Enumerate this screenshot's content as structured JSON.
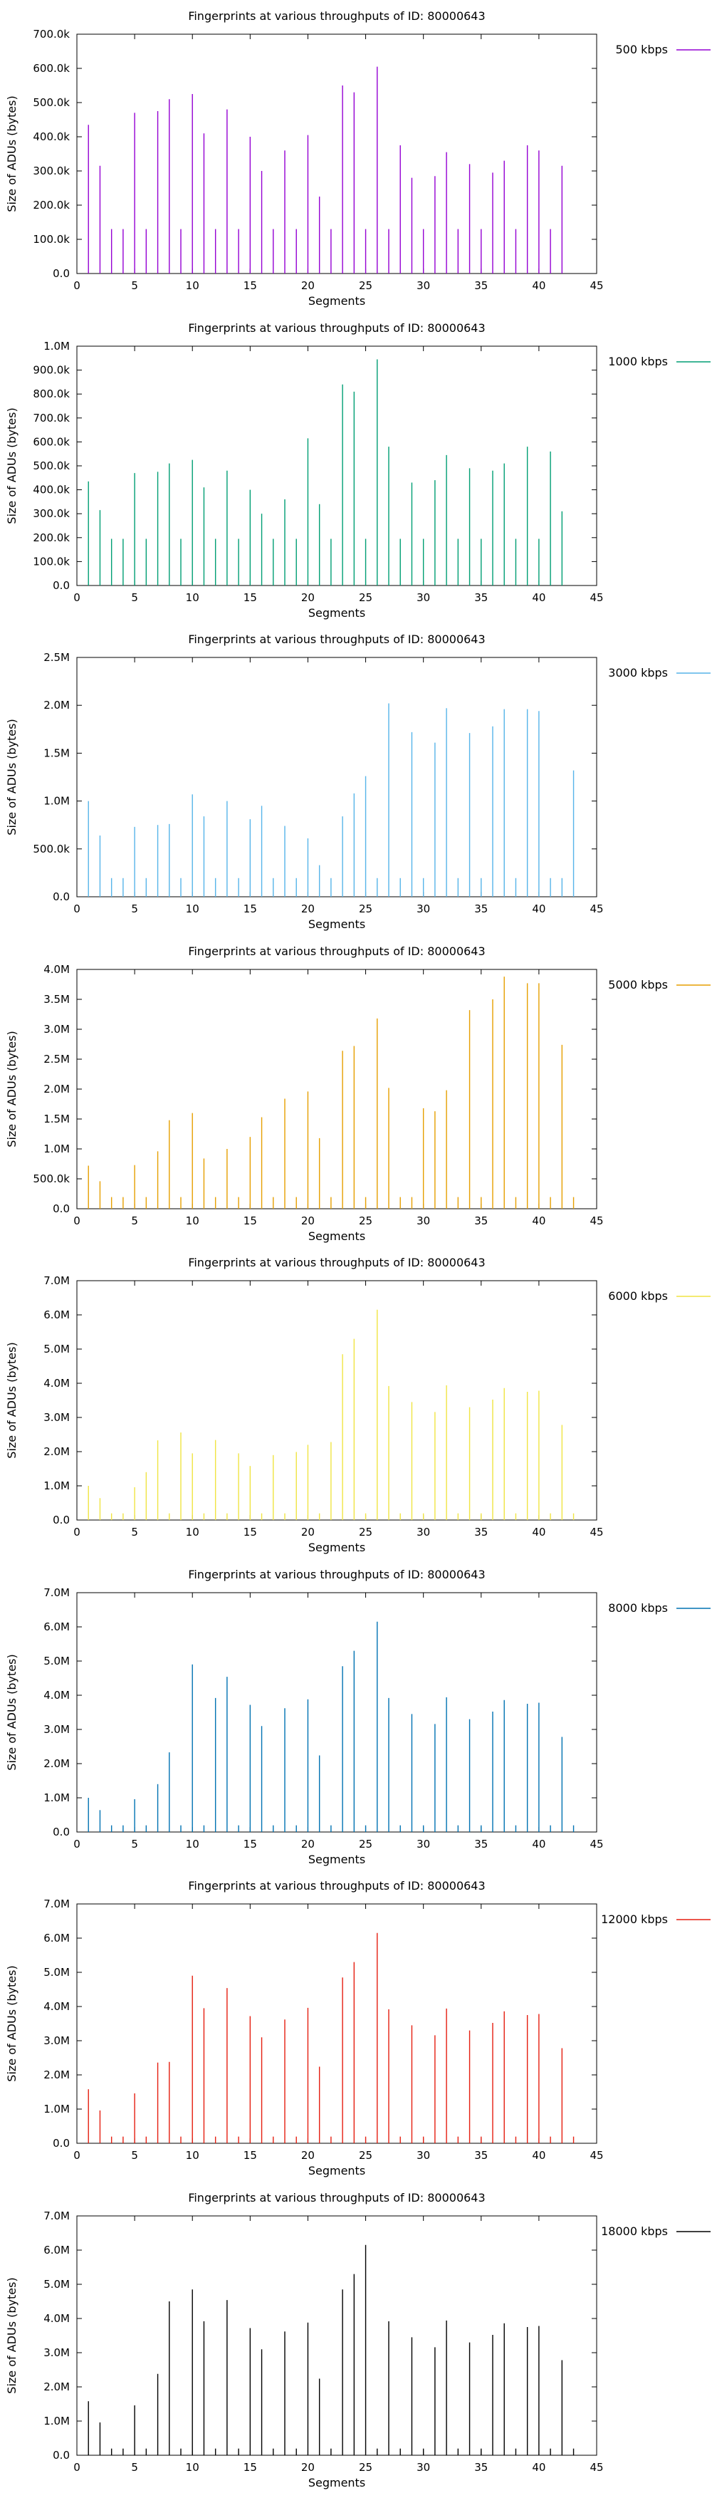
{
  "chart_data": [
    {
      "type": "bar",
      "title": "Fingerprints at various throughputs of ID: 80000643",
      "xlabel": "Segments",
      "ylabel": "Size of ADUs (bytes)",
      "xlim": [
        0,
        45
      ],
      "ylim": [
        0,
        700000
      ],
      "xticks": [
        "0",
        "5",
        "10",
        "15",
        "20",
        "25",
        "30",
        "35",
        "40",
        "45"
      ],
      "yticks": [
        "0.0",
        "100.0k",
        "200.0k",
        "300.0k",
        "400.0k",
        "500.0k",
        "600.0k",
        "700.0k"
      ],
      "legend": "top-right",
      "series": [
        {
          "name": "500 kbps",
          "color": "#9400d3",
          "x": [
            1,
            2,
            3,
            4,
            5,
            6,
            7,
            8,
            9,
            10,
            11,
            12,
            13,
            14,
            15,
            16,
            17,
            18,
            19,
            20,
            21,
            22,
            23,
            24,
            25,
            26,
            27,
            28,
            29,
            30,
            31,
            32,
            33,
            34,
            35,
            36,
            37,
            38,
            39,
            40,
            41,
            42
          ],
          "values": [
            435000,
            315000,
            130000,
            130000,
            470000,
            130000,
            475000,
            510000,
            130000,
            525000,
            410000,
            130000,
            480000,
            130000,
            400000,
            300000,
            130000,
            360000,
            130000,
            405000,
            225000,
            130000,
            550000,
            530000,
            130000,
            605000,
            130000,
            375000,
            280000,
            130000,
            285000,
            355000,
            130000,
            320000,
            130000,
            295000,
            330000,
            130000,
            375000,
            360000,
            130000,
            315000
          ]
        }
      ]
    },
    {
      "type": "bar",
      "title": "Fingerprints at various throughputs of ID: 80000643",
      "xlabel": "Segments",
      "ylabel": "Size of ADUs (bytes)",
      "xlim": [
        0,
        45
      ],
      "ylim": [
        0,
        1000000
      ],
      "xticks": [
        "0",
        "5",
        "10",
        "15",
        "20",
        "25",
        "30",
        "35",
        "40",
        "45"
      ],
      "yticks": [
        "0.0",
        "100.0k",
        "200.0k",
        "300.0k",
        "400.0k",
        "500.0k",
        "600.0k",
        "700.0k",
        "800.0k",
        "900.0k",
        "1.0M"
      ],
      "legend": "top-right",
      "series": [
        {
          "name": "1000 kbps",
          "color": "#009e73",
          "x": [
            1,
            2,
            3,
            4,
            5,
            6,
            7,
            8,
            9,
            10,
            11,
            12,
            13,
            14,
            15,
            16,
            17,
            18,
            19,
            20,
            21,
            22,
            23,
            24,
            25,
            26,
            27,
            28,
            29,
            30,
            31,
            32,
            33,
            34,
            35,
            36,
            37,
            38,
            39,
            40,
            41,
            42
          ],
          "values": [
            435000,
            315000,
            195000,
            195000,
            470000,
            195000,
            475000,
            510000,
            195000,
            525000,
            410000,
            195000,
            480000,
            195000,
            400000,
            300000,
            195000,
            360000,
            195000,
            615000,
            340000,
            195000,
            840000,
            810000,
            195000,
            945000,
            580000,
            195000,
            430000,
            195000,
            440000,
            545000,
            195000,
            490000,
            195000,
            480000,
            510000,
            195000,
            580000,
            195000,
            560000,
            310000
          ]
        }
      ]
    },
    {
      "type": "bar",
      "title": "Fingerprints at various throughputs of ID: 80000643",
      "xlabel": "Segments",
      "ylabel": "Size of ADUs (bytes)",
      "xlim": [
        0,
        45
      ],
      "ylim": [
        0,
        2500000
      ],
      "xticks": [
        "0",
        "5",
        "10",
        "15",
        "20",
        "25",
        "30",
        "35",
        "40",
        "45"
      ],
      "yticks": [
        "0.0",
        "500.0k",
        "1.0M",
        "1.5M",
        "2.0M",
        "2.5M"
      ],
      "legend": "top-right",
      "series": [
        {
          "name": "3000 kbps",
          "color": "#56b4e9",
          "x": [
            1,
            2,
            3,
            4,
            5,
            6,
            7,
            8,
            9,
            10,
            11,
            12,
            13,
            14,
            15,
            16,
            17,
            18,
            19,
            20,
            21,
            22,
            23,
            24,
            25,
            26,
            27,
            28,
            29,
            30,
            31,
            32,
            33,
            34,
            35,
            36,
            37,
            38,
            39,
            40,
            41,
            42,
            43
          ],
          "values": [
            1000000,
            640000,
            195000,
            195000,
            730000,
            195000,
            750000,
            760000,
            195000,
            1070000,
            840000,
            195000,
            1000000,
            195000,
            810000,
            950000,
            195000,
            740000,
            195000,
            610000,
            330000,
            195000,
            840000,
            1080000,
            1260000,
            195000,
            2020000,
            195000,
            1720000,
            195000,
            1610000,
            1970000,
            195000,
            1710000,
            195000,
            1780000,
            1960000,
            195000,
            1960000,
            1940000,
            195000,
            195000,
            1320000
          ]
        }
      ]
    },
    {
      "type": "bar",
      "title": "Fingerprints at various throughputs of ID: 80000643",
      "xlabel": "Segments",
      "ylabel": "Size of ADUs (bytes)",
      "xlim": [
        0,
        45
      ],
      "ylim": [
        0,
        4000000
      ],
      "xticks": [
        "0",
        "5",
        "10",
        "15",
        "20",
        "25",
        "30",
        "35",
        "40",
        "45"
      ],
      "yticks": [
        "0.0",
        "500.0k",
        "1.0M",
        "1.5M",
        "2.0M",
        "2.5M",
        "3.0M",
        "3.5M",
        "4.0M"
      ],
      "legend": "top-right",
      "series": [
        {
          "name": "5000 kbps",
          "color": "#e69f00",
          "x": [
            1,
            2,
            3,
            4,
            5,
            6,
            7,
            8,
            9,
            10,
            11,
            12,
            13,
            14,
            15,
            16,
            17,
            18,
            19,
            20,
            21,
            22,
            23,
            24,
            25,
            26,
            27,
            28,
            29,
            30,
            31,
            32,
            33,
            34,
            35,
            36,
            37,
            38,
            39,
            40,
            41,
            42,
            43
          ],
          "values": [
            720000,
            460000,
            195000,
            195000,
            730000,
            195000,
            960000,
            1480000,
            195000,
            1600000,
            840000,
            195000,
            1000000,
            195000,
            1200000,
            1530000,
            195000,
            1840000,
            195000,
            1960000,
            1180000,
            195000,
            2640000,
            2720000,
            195000,
            3180000,
            2020000,
            195000,
            195000,
            1680000,
            1630000,
            1980000,
            195000,
            3320000,
            195000,
            3500000,
            3880000,
            195000,
            3770000,
            3770000,
            195000,
            2740000,
            195000
          ]
        }
      ]
    },
    {
      "type": "bar",
      "title": "Fingerprints at various throughputs of ID: 80000643",
      "xlabel": "Segments",
      "ylabel": "Size of ADUs (bytes)",
      "xlim": [
        0,
        45
      ],
      "ylim": [
        0,
        7000000
      ],
      "xticks": [
        "0",
        "5",
        "10",
        "15",
        "20",
        "25",
        "30",
        "35",
        "40",
        "45"
      ],
      "yticks": [
        "0.0",
        "1.0M",
        "2.0M",
        "3.0M",
        "4.0M",
        "5.0M",
        "6.0M",
        "7.0M"
      ],
      "legend": "top-right",
      "series": [
        {
          "name": "6000 kbps",
          "color": "#f0e442",
          "x": [
            1,
            2,
            3,
            4,
            5,
            6,
            7,
            8,
            9,
            10,
            11,
            12,
            13,
            14,
            15,
            16,
            17,
            18,
            19,
            20,
            21,
            22,
            23,
            24,
            25,
            26,
            27,
            28,
            29,
            30,
            31,
            32,
            33,
            34,
            35,
            36,
            37,
            38,
            39,
            40,
            41,
            42,
            43
          ],
          "values": [
            1000000,
            640000,
            195000,
            195000,
            960000,
            1400000,
            2330000,
            195000,
            2560000,
            1950000,
            195000,
            2340000,
            195000,
            1950000,
            1580000,
            195000,
            1900000,
            195000,
            1990000,
            2200000,
            195000,
            2280000,
            4850000,
            5300000,
            195000,
            6150000,
            3920000,
            195000,
            3450000,
            195000,
            3160000,
            3940000,
            195000,
            3300000,
            195000,
            3520000,
            3860000,
            195000,
            3750000,
            3780000,
            195000,
            2780000,
            195000
          ]
        }
      ]
    },
    {
      "type": "bar",
      "title": "Fingerprints at various throughputs of ID: 80000643",
      "xlabel": "Segments",
      "ylabel": "Size of ADUs (bytes)",
      "xlim": [
        0,
        45
      ],
      "ylim": [
        0,
        7000000
      ],
      "xticks": [
        "0",
        "5",
        "10",
        "15",
        "20",
        "25",
        "30",
        "35",
        "40",
        "45"
      ],
      "yticks": [
        "0.0",
        "1.0M",
        "2.0M",
        "3.0M",
        "4.0M",
        "5.0M",
        "6.0M",
        "7.0M"
      ],
      "legend": "top-right",
      "series": [
        {
          "name": "8000 kbps",
          "color": "#0072b2",
          "x": [
            1,
            2,
            3,
            4,
            5,
            6,
            7,
            8,
            9,
            10,
            11,
            12,
            13,
            14,
            15,
            16,
            17,
            18,
            19,
            20,
            21,
            22,
            23,
            24,
            25,
            26,
            27,
            28,
            29,
            30,
            31,
            32,
            33,
            34,
            35,
            36,
            37,
            38,
            39,
            40,
            41,
            42,
            43
          ],
          "values": [
            1000000,
            640000,
            195000,
            195000,
            960000,
            195000,
            1400000,
            2330000,
            195000,
            4900000,
            195000,
            3920000,
            4540000,
            195000,
            3720000,
            3100000,
            195000,
            3620000,
            195000,
            3880000,
            2240000,
            195000,
            4850000,
            5300000,
            195000,
            6150000,
            3920000,
            195000,
            3450000,
            195000,
            3160000,
            3940000,
            195000,
            3300000,
            195000,
            3520000,
            3860000,
            195000,
            3750000,
            3780000,
            195000,
            2780000,
            195000
          ]
        }
      ]
    },
    {
      "type": "bar",
      "title": "Fingerprints at various throughputs of ID: 80000643",
      "xlabel": "Segments",
      "ylabel": "Size of ADUs (bytes)",
      "xlim": [
        0,
        45
      ],
      "ylim": [
        0,
        7000000
      ],
      "xticks": [
        "0",
        "5",
        "10",
        "15",
        "20",
        "25",
        "30",
        "35",
        "40",
        "45"
      ],
      "yticks": [
        "0.0",
        "1.0M",
        "2.0M",
        "3.0M",
        "4.0M",
        "5.0M",
        "6.0M",
        "7.0M"
      ],
      "legend": "top-right",
      "series": [
        {
          "name": "12000 kbps",
          "color": "#e51e10",
          "x": [
            1,
            2,
            3,
            4,
            5,
            6,
            7,
            8,
            9,
            10,
            11,
            12,
            13,
            14,
            15,
            16,
            17,
            18,
            19,
            20,
            21,
            22,
            23,
            24,
            25,
            26,
            27,
            28,
            29,
            30,
            31,
            32,
            33,
            34,
            35,
            36,
            37,
            38,
            39,
            40,
            41,
            42,
            43
          ],
          "values": [
            1580000,
            960000,
            195000,
            195000,
            1460000,
            195000,
            2360000,
            2380000,
            195000,
            4900000,
            3950000,
            195000,
            4540000,
            195000,
            3720000,
            3100000,
            195000,
            3620000,
            195000,
            3960000,
            2240000,
            195000,
            4850000,
            5300000,
            195000,
            6150000,
            3920000,
            195000,
            3450000,
            195000,
            3160000,
            3940000,
            195000,
            3300000,
            195000,
            3520000,
            3860000,
            195000,
            3750000,
            3780000,
            195000,
            2780000,
            195000
          ]
        }
      ]
    },
    {
      "type": "bar",
      "title": "Fingerprints at various throughputs of ID: 80000643",
      "xlabel": "Segments",
      "ylabel": "Size of ADUs (bytes)",
      "xlim": [
        0,
        45
      ],
      "ylim": [
        0,
        7000000
      ],
      "xticks": [
        "0",
        "5",
        "10",
        "15",
        "20",
        "25",
        "30",
        "35",
        "40",
        "45"
      ],
      "yticks": [
        "0.0",
        "1.0M",
        "2.0M",
        "3.0M",
        "4.0M",
        "5.0M",
        "6.0M",
        "7.0M"
      ],
      "legend": "top-right",
      "series": [
        {
          "name": "18000 kbps",
          "color": "#000000",
          "x": [
            1,
            2,
            3,
            4,
            5,
            6,
            7,
            8,
            9,
            10,
            11,
            12,
            13,
            14,
            15,
            16,
            17,
            18,
            19,
            20,
            21,
            22,
            23,
            24,
            25,
            26,
            27,
            28,
            29,
            30,
            31,
            32,
            33,
            34,
            35,
            36,
            37,
            38,
            39,
            40,
            41,
            42,
            43
          ],
          "values": [
            1580000,
            960000,
            195000,
            195000,
            1460000,
            195000,
            2380000,
            4500000,
            195000,
            4850000,
            3920000,
            195000,
            4540000,
            195000,
            3720000,
            3100000,
            195000,
            3620000,
            195000,
            3880000,
            2240000,
            195000,
            4850000,
            5300000,
            6150000,
            195000,
            3920000,
            195000,
            3450000,
            195000,
            3160000,
            3940000,
            195000,
            3300000,
            195000,
            3520000,
            3860000,
            195000,
            3750000,
            3780000,
            195000,
            2780000,
            195000
          ]
        }
      ]
    }
  ]
}
